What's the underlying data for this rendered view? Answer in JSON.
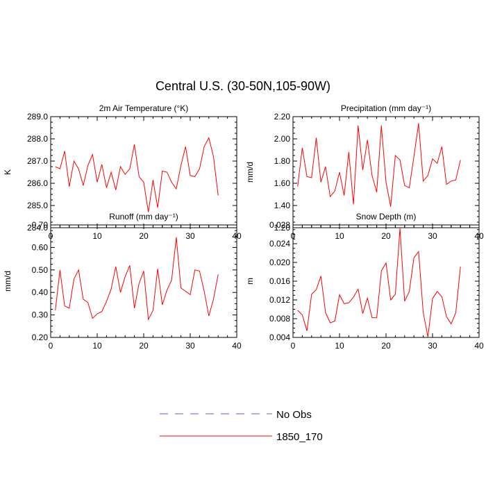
{
  "figure": {
    "title": "Central U.S. (30-50N,105-90W)"
  },
  "legend": {
    "items": [
      {
        "label": "No Obs",
        "color": "#5a5aff",
        "style": "dashed"
      },
      {
        "label": "1850_170",
        "color": "#ff0000",
        "style": "solid"
      }
    ]
  },
  "chart_data": [
    {
      "type": "line",
      "title": "2m Air Temperature (°K)",
      "ylabel": "K",
      "xlabel": "",
      "xlim": [
        0,
        40
      ],
      "ylim": [
        284.0,
        289.0
      ],
      "xticks": [
        "0",
        "10",
        "20",
        "30",
        "40"
      ],
      "yticks": [
        "284.0",
        "285.0",
        "286.0",
        "287.0",
        "288.0",
        "289.0"
      ],
      "x": [
        1,
        2,
        3,
        4,
        5,
        6,
        7,
        8,
        9,
        10,
        11,
        12,
        13,
        14,
        15,
        16,
        17,
        18,
        19,
        20,
        21,
        22,
        23,
        24,
        25,
        26,
        27,
        28,
        29,
        30,
        31,
        32,
        33,
        34,
        35,
        36
      ],
      "series": [
        {
          "name": "1850_170",
          "color": "#ff0000",
          "values": [
            286.75,
            286.65,
            287.45,
            285.85,
            287.0,
            286.65,
            285.9,
            286.8,
            287.3,
            286.05,
            286.85,
            285.8,
            286.5,
            285.7,
            286.75,
            286.4,
            286.65,
            287.75,
            286.3,
            286.05,
            284.7,
            286.15,
            284.9,
            286.55,
            286.5,
            286.05,
            285.75,
            286.8,
            287.65,
            286.35,
            286.3,
            286.65,
            287.65,
            288.05,
            287.2,
            285.45
          ]
        }
      ]
    },
    {
      "type": "line",
      "title": "Precipitation (mm day⁻¹)",
      "ylabel": "mm/d",
      "xlabel": "",
      "xlim": [
        0,
        40
      ],
      "ylim": [
        1.2,
        2.2
      ],
      "xticks": [
        "0",
        "10",
        "20",
        "30",
        "40"
      ],
      "yticks": [
        "1.20",
        "1.40",
        "1.60",
        "1.80",
        "2.00",
        "2.20"
      ],
      "x": [
        1,
        2,
        3,
        4,
        5,
        6,
        7,
        8,
        9,
        10,
        11,
        12,
        13,
        14,
        15,
        16,
        17,
        18,
        19,
        20,
        21,
        22,
        23,
        24,
        25,
        26,
        27,
        28,
        29,
        30,
        31,
        32,
        33,
        34,
        35,
        36
      ],
      "series": [
        {
          "name": "1850_170",
          "color": "#ff0000",
          "values": [
            1.57,
            1.92,
            1.66,
            1.65,
            2.01,
            1.61,
            1.75,
            1.48,
            1.53,
            1.7,
            1.49,
            1.88,
            1.41,
            2.12,
            1.72,
            1.99,
            1.67,
            1.52,
            2.12,
            1.61,
            1.39,
            1.85,
            1.81,
            1.58,
            1.56,
            1.84,
            2.14,
            1.62,
            1.67,
            1.82,
            1.78,
            1.93,
            1.59,
            1.62,
            1.63,
            1.81
          ]
        }
      ]
    },
    {
      "type": "line",
      "title": "Runoff (mm day⁻¹)",
      "ylabel": "mm/d",
      "xlabel": "",
      "xlim": [
        0,
        40
      ],
      "ylim": [
        0.2,
        0.7
      ],
      "xticks": [
        "0",
        "10",
        "20",
        "30",
        "40"
      ],
      "yticks": [
        "0.20",
        "0.30",
        "0.40",
        "0.50",
        "0.60",
        "0.70"
      ],
      "x": [
        1,
        2,
        3,
        4,
        5,
        6,
        7,
        8,
        9,
        10,
        11,
        12,
        13,
        14,
        15,
        16,
        17,
        18,
        19,
        20,
        21,
        22,
        23,
        24,
        25,
        26,
        27,
        28,
        29,
        30,
        31,
        32,
        33,
        34,
        35,
        36
      ],
      "series": [
        {
          "name": "1850_170",
          "color": "#ff0000",
          "values": [
            0.32,
            0.5,
            0.34,
            0.33,
            0.46,
            0.5,
            0.37,
            0.355,
            0.285,
            0.305,
            0.315,
            0.36,
            0.415,
            0.515,
            0.4,
            0.47,
            0.52,
            0.33,
            0.44,
            0.495,
            0.28,
            0.32,
            0.505,
            0.345,
            0.41,
            0.455,
            0.645,
            0.42,
            0.405,
            0.39,
            0.5,
            0.495,
            0.405,
            0.295,
            0.37,
            0.48
          ]
        }
      ]
    },
    {
      "type": "line",
      "title": "Snow Depth (m)",
      "ylabel": "m",
      "xlabel": "",
      "xlim": [
        0,
        40
      ],
      "ylim": [
        0.004,
        0.028
      ],
      "xticks": [
        "0",
        "10",
        "20",
        "30",
        "40"
      ],
      "yticks": [
        "0.004",
        "0.008",
        "0.012",
        "0.016",
        "0.020",
        "0.024",
        "0.028"
      ],
      "x": [
        1,
        2,
        3,
        4,
        5,
        6,
        7,
        8,
        9,
        10,
        11,
        12,
        13,
        14,
        15,
        16,
        17,
        18,
        19,
        20,
        21,
        22,
        23,
        24,
        25,
        26,
        27,
        28,
        29,
        30,
        31,
        32,
        33,
        34,
        35,
        36
      ],
      "series": [
        {
          "name": "1850_170",
          "color": "#ff0000",
          "values": [
            0.0098,
            0.0088,
            0.0054,
            0.0132,
            0.0142,
            0.0171,
            0.0093,
            0.0071,
            0.0075,
            0.0131,
            0.0112,
            0.0114,
            0.0126,
            0.0143,
            0.0091,
            0.0124,
            0.0082,
            0.0082,
            0.0182,
            0.0199,
            0.012,
            0.0132,
            0.0273,
            0.0117,
            0.0138,
            0.021,
            0.0223,
            0.0093,
            0.0041,
            0.0123,
            0.0138,
            0.0127,
            0.0084,
            0.0069,
            0.0093,
            0.0191
          ]
        }
      ]
    }
  ]
}
